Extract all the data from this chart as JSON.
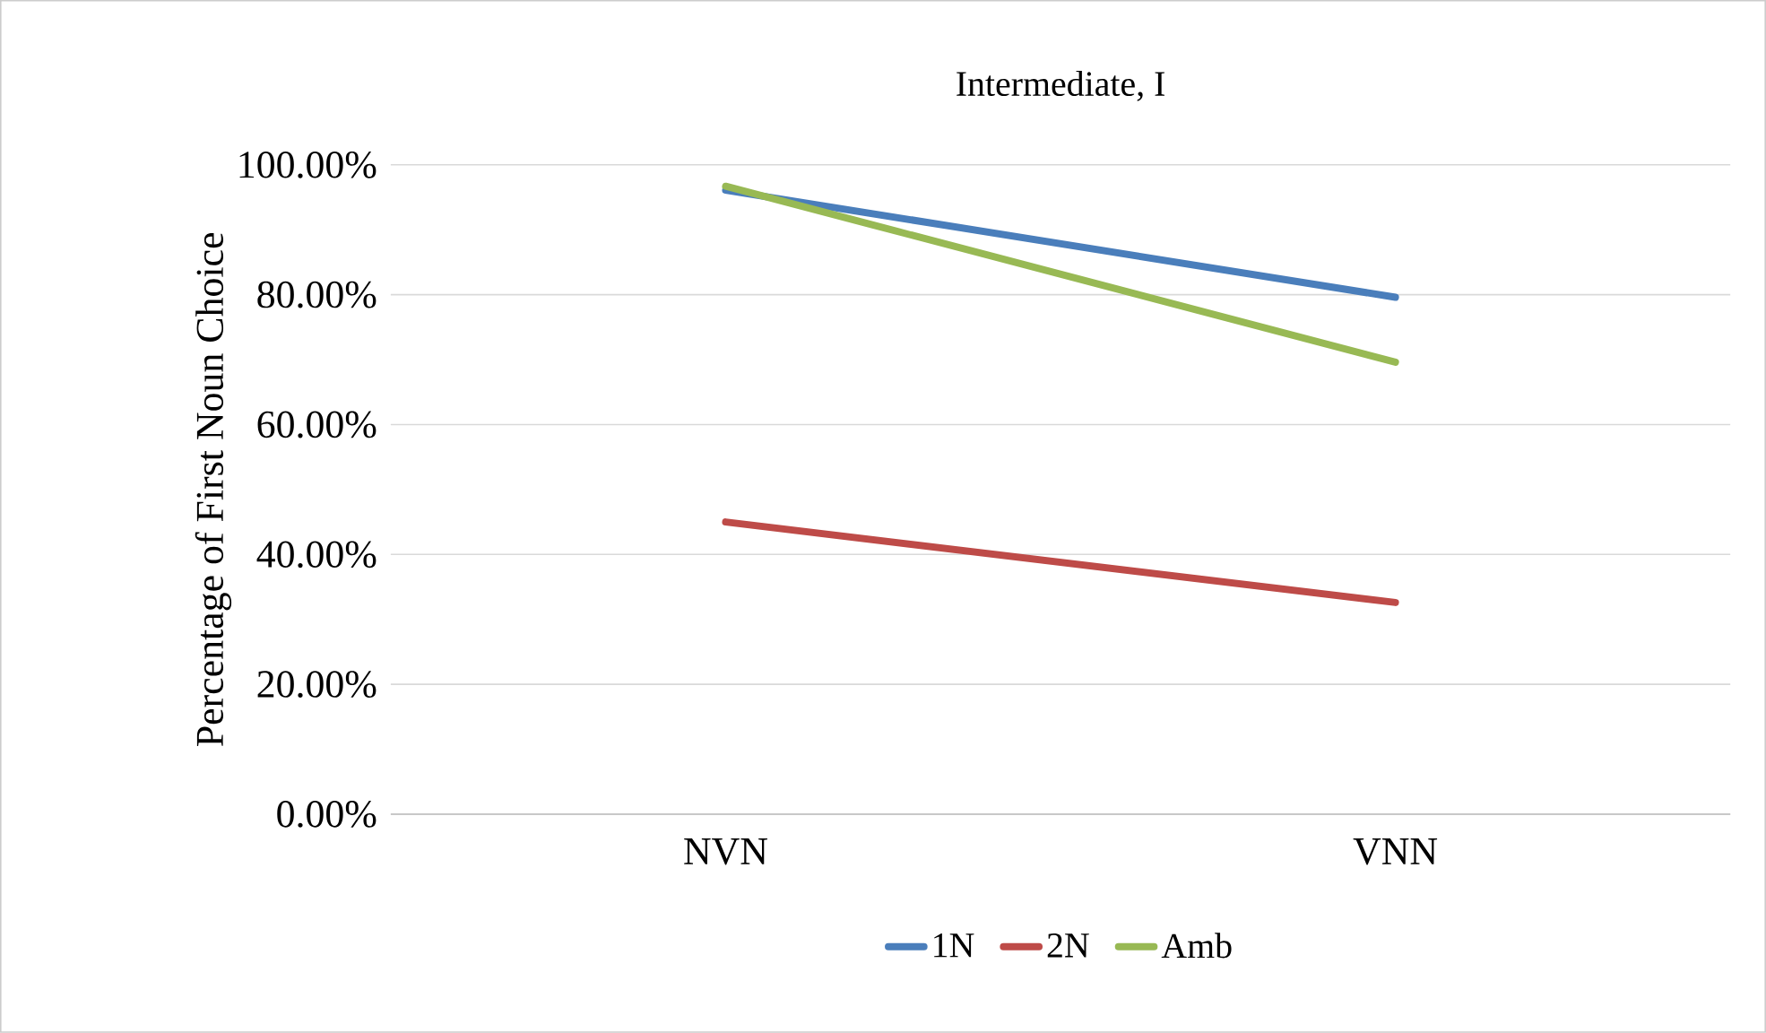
{
  "chart_data": {
    "type": "line",
    "title": "Intermediate, I",
    "ylabel": "Percentage of First Noun Choice",
    "categories": [
      "NVN",
      "VNN"
    ],
    "series": [
      {
        "name": "1N",
        "color": "#4a7ebb",
        "values": [
          96.1,
          79.6
        ]
      },
      {
        "name": "2N",
        "color": "#be4b48",
        "values": [
          45.0,
          32.6
        ]
      },
      {
        "name": "Amb",
        "color": "#98b954",
        "values": [
          96.7,
          69.6
        ]
      }
    ],
    "ylim": [
      0,
      100
    ],
    "yticks": [
      {
        "value": 0,
        "label": "0.00%"
      },
      {
        "value": 20,
        "label": "20.00%"
      },
      {
        "value": 40,
        "label": "40.00%"
      },
      {
        "value": 60,
        "label": "60.00%"
      },
      {
        "value": 80,
        "label": "80.00%"
      },
      {
        "value": 100,
        "label": "100.00%"
      }
    ],
    "grid": "y",
    "legend": "bottom",
    "marker": "none",
    "line_style": "solid"
  }
}
